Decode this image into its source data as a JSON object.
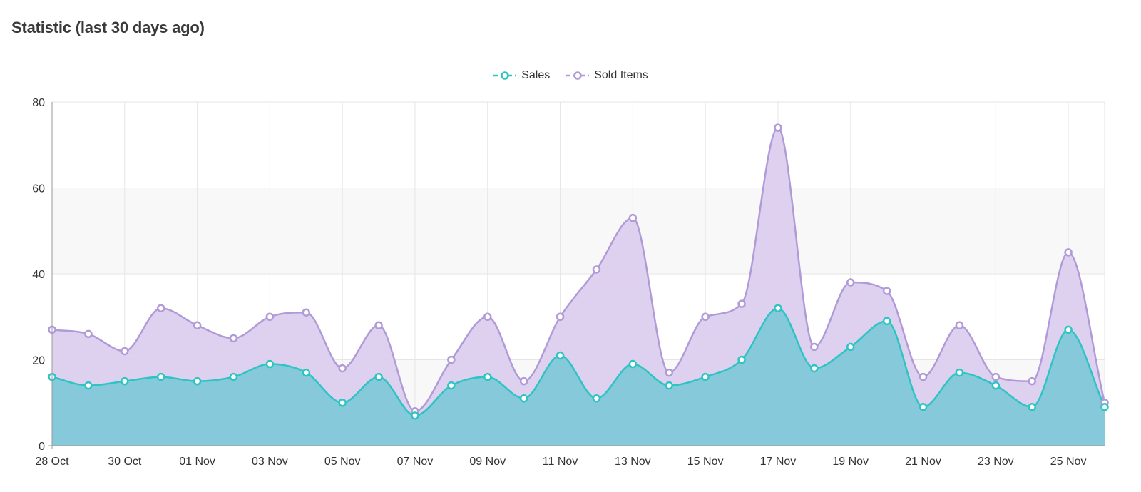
{
  "title": "Statistic (last 30 days ago)",
  "colors": {
    "sales_line": "#2ec4c4",
    "sales_fill": "#7fc8d8",
    "sold_line": "#b09ad8",
    "sold_fill": "#dccfee",
    "grid": "#e6e6e6",
    "band": "#f8f8f8"
  },
  "chart_data": {
    "type": "area",
    "categories": [
      "28 Oct",
      "29 Oct",
      "30 Oct",
      "31 Oct",
      "01 Nov",
      "02 Nov",
      "03 Nov",
      "04 Nov",
      "05 Nov",
      "06 Nov",
      "07 Nov",
      "08 Nov",
      "09 Nov",
      "10 Nov",
      "11 Nov",
      "12 Nov",
      "13 Nov",
      "14 Nov",
      "15 Nov",
      "16 Nov",
      "17 Nov",
      "18 Nov",
      "19 Nov",
      "20 Nov",
      "21 Nov",
      "22 Nov",
      "23 Nov",
      "24 Nov",
      "25 Nov",
      "26 Nov"
    ],
    "tick_labels": [
      "28 Oct",
      "30 Oct",
      "01 Nov",
      "03 Nov",
      "05 Nov",
      "07 Nov",
      "09 Nov",
      "11 Nov",
      "13 Nov",
      "15 Nov",
      "17 Nov",
      "19 Nov",
      "21 Nov",
      "23 Nov",
      "25 Nov"
    ],
    "y_ticks": [
      0,
      20,
      40,
      60,
      80
    ],
    "ylim": [
      0,
      80
    ],
    "grid": true,
    "legend_position": "top-center",
    "series": [
      {
        "name": "Sales",
        "values": [
          16,
          14,
          15,
          16,
          15,
          16,
          19,
          17,
          10,
          16,
          7,
          14,
          16,
          11,
          21,
          11,
          19,
          14,
          16,
          20,
          32,
          18,
          23,
          29,
          9,
          17,
          14,
          9,
          27,
          9
        ]
      },
      {
        "name": "Sold Items",
        "values": [
          27,
          26,
          22,
          32,
          28,
          25,
          30,
          31,
          18,
          28,
          8,
          20,
          30,
          15,
          30,
          41,
          53,
          17,
          30,
          33,
          74,
          23,
          38,
          36,
          16,
          28,
          16,
          15,
          45,
          10
        ]
      }
    ]
  }
}
